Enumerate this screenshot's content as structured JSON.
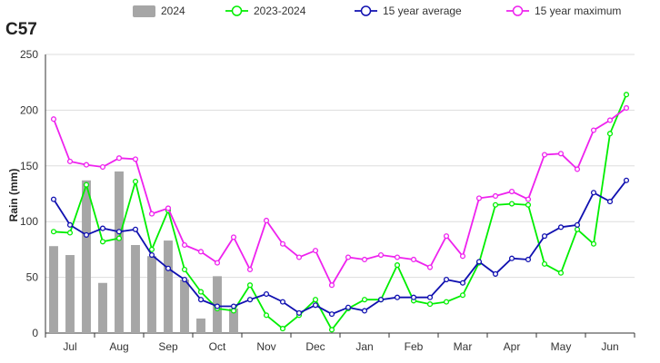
{
  "chart_data": {
    "type": "bar+line",
    "title": "C57",
    "ylabel": "Rain (mm)",
    "xlabel": "",
    "ylim": [
      0,
      250
    ],
    "yticks": [
      0,
      50,
      100,
      150,
      200,
      250
    ],
    "grid": true,
    "legend_position": "top-center",
    "month_labels": [
      "Jul",
      "Aug",
      "Sep",
      "Oct",
      "Nov",
      "Dec",
      "Jan",
      "Feb",
      "Mar",
      "Apr",
      "May",
      "Jun"
    ],
    "periods_per_month": 3,
    "bar_series": {
      "name": "2024",
      "color": "#a6a6a6",
      "values": [
        78,
        70,
        137,
        45,
        145,
        79,
        69,
        83,
        48,
        13,
        51,
        22
      ]
    },
    "line_series": [
      {
        "name": "2023-2024",
        "color": "#00ee00",
        "values": [
          91,
          90,
          133,
          82,
          85,
          136,
          75,
          110,
          57,
          37,
          22,
          20,
          43,
          16,
          4,
          16,
          30,
          3,
          22,
          30,
          30,
          61,
          29,
          26,
          28,
          34,
          63,
          115,
          116,
          115,
          62,
          54,
          93,
          80,
          179,
          214
        ]
      },
      {
        "name": "15 year average",
        "color": "#1010b0",
        "values": [
          120,
          97,
          88,
          94,
          91,
          93,
          70,
          58,
          48,
          30,
          24,
          24,
          30,
          35,
          28,
          18,
          25,
          17,
          23,
          20,
          30,
          32,
          32,
          32,
          48,
          45,
          64,
          53,
          67,
          66,
          87,
          95,
          97,
          126,
          118,
          137
        ]
      },
      {
        "name": "15 year maximum",
        "color": "#ee22ee",
        "values": [
          192,
          154,
          151,
          149,
          157,
          156,
          107,
          112,
          79,
          73,
          63,
          86,
          57,
          101,
          80,
          68,
          74,
          43,
          68,
          66,
          70,
          68,
          66,
          59,
          87,
          69,
          121,
          123,
          127,
          120,
          160,
          161,
          147,
          182,
          191,
          202
        ]
      }
    ]
  }
}
